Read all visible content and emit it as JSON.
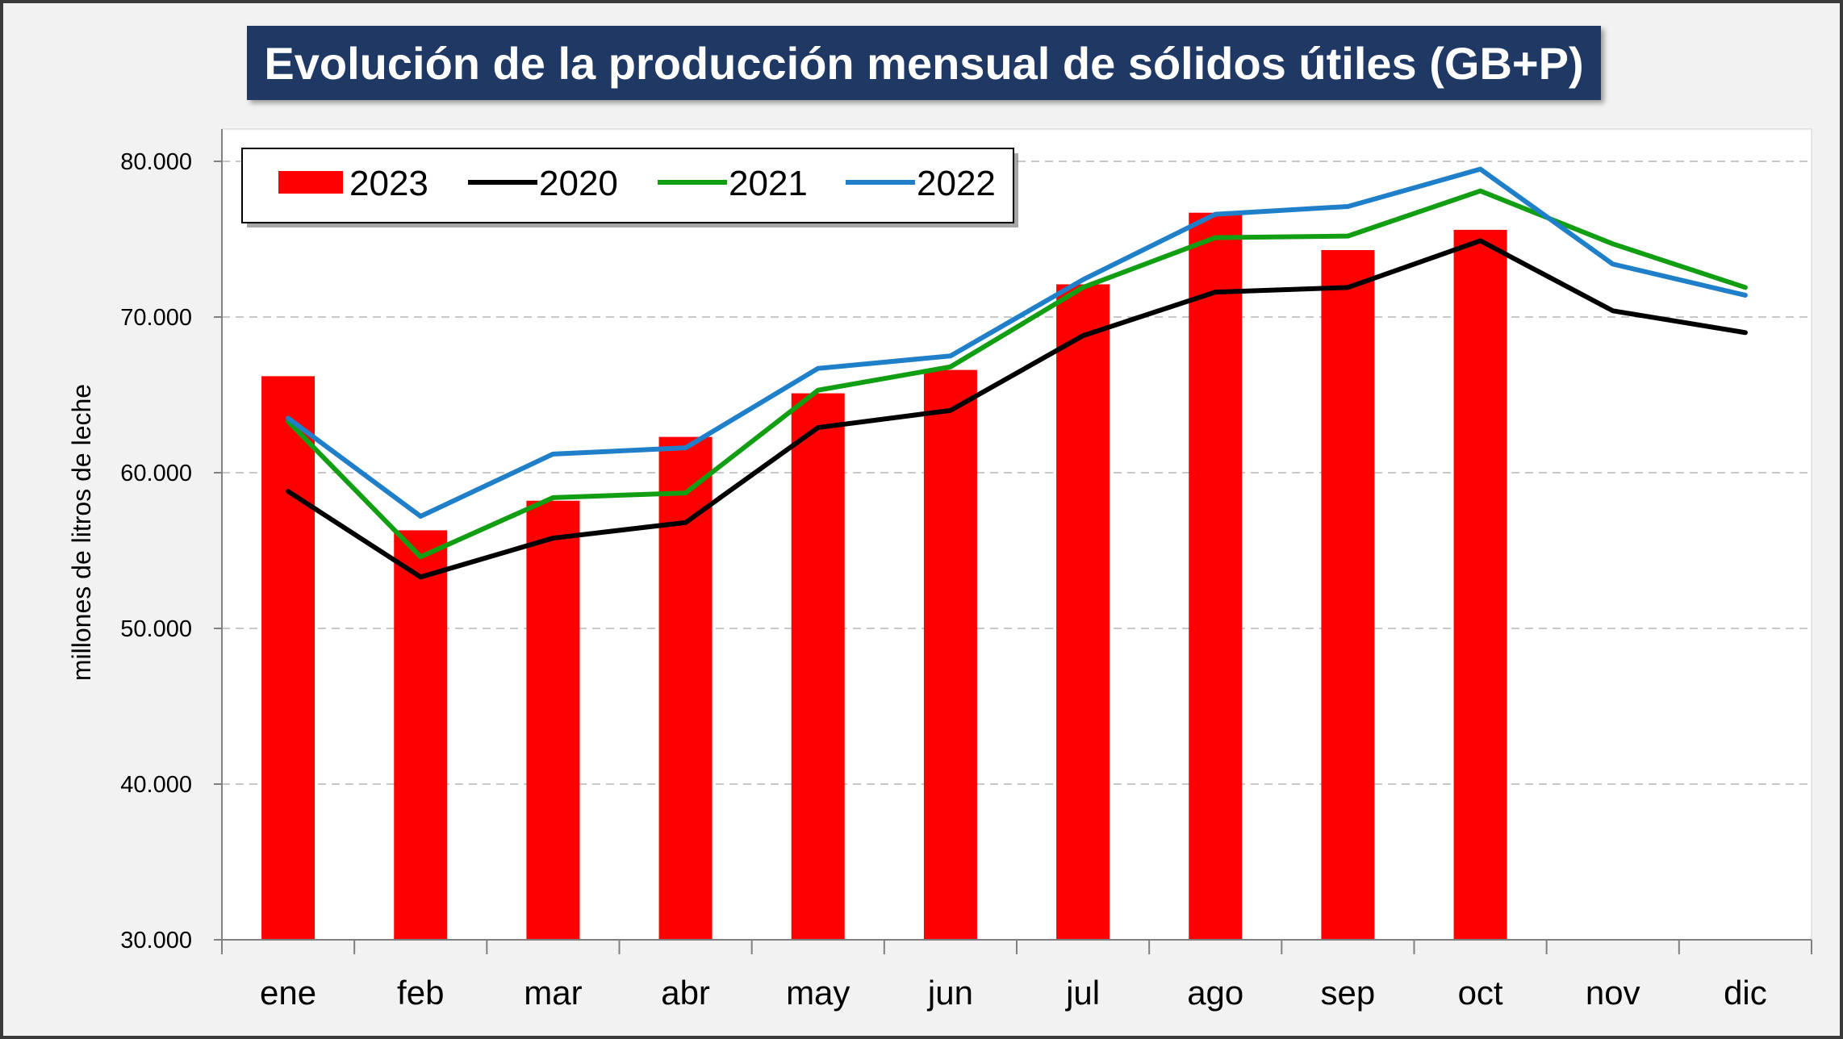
{
  "chart_data": {
    "type": "bar",
    "title": "Evolución de la producción mensual de sólidos útiles (GB+P)",
    "xlabel": "",
    "ylabel": "millones de litros de leche",
    "ylim": [
      30000,
      80000
    ],
    "yticks": [
      30000,
      40000,
      50000,
      60000,
      70000,
      80000
    ],
    "ytick_labels": [
      "30.000",
      "40.000",
      "50.000",
      "60.000",
      "70.000",
      "80.000"
    ],
    "grid": true,
    "legend_position": "top-left",
    "categories": [
      "ene",
      "feb",
      "mar",
      "abr",
      "may",
      "jun",
      "jul",
      "ago",
      "sep",
      "oct",
      "nov",
      "dic"
    ],
    "series": [
      {
        "name": "2023",
        "type": "bar",
        "color": "#ff0000",
        "values": [
          66200,
          56300,
          58200,
          62300,
          65100,
          66600,
          72100,
          76700,
          74300,
          75600,
          null,
          null
        ]
      },
      {
        "name": "2020",
        "type": "line",
        "color": "#000000",
        "values": [
          58800,
          53300,
          55800,
          56800,
          62900,
          64000,
          68800,
          71600,
          71900,
          74900,
          70400,
          69000
        ]
      },
      {
        "name": "2021",
        "type": "line",
        "color": "#129e12",
        "values": [
          63300,
          54600,
          58400,
          58700,
          65300,
          66800,
          71900,
          75100,
          75200,
          78100,
          74700,
          71900
        ]
      },
      {
        "name": "2022",
        "type": "line",
        "color": "#1f7fc9",
        "values": [
          63500,
          57200,
          61200,
          61600,
          66700,
          67500,
          72400,
          76600,
          77100,
          79500,
          73400,
          71400
        ]
      }
    ]
  }
}
